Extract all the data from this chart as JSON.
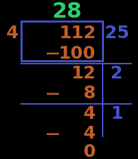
{
  "title": "28",
  "title_color": "#2ecc71",
  "divisor": "4",
  "divisor_color": "#c0602a",
  "bg_color": "#000000",
  "box_color": "#4455cc",
  "line_color": "#4455cc",
  "rows": [
    {
      "left": "112",
      "right": "25",
      "left_color": "#c0602a",
      "right_color": "#4455cc",
      "has_minus": false,
      "minus_left": false
    },
    {
      "left": "100",
      "right": "",
      "left_color": "#c0602a",
      "right_color": "#4455cc",
      "has_minus": true,
      "minus_left": true
    },
    {
      "left": "12",
      "right": "2",
      "left_color": "#c0602a",
      "right_color": "#4455cc",
      "has_minus": false,
      "minus_left": false
    },
    {
      "left": "8",
      "right": "",
      "left_color": "#c0602a",
      "right_color": "#4455cc",
      "has_minus": true,
      "minus_left": true
    },
    {
      "left": "4",
      "right": "1",
      "left_color": "#c0602a",
      "right_color": "#4455cc",
      "has_minus": false,
      "minus_left": false
    },
    {
      "left": "4",
      "right": "",
      "left_color": "#c0602a",
      "right_color": "#4455cc",
      "has_minus": true,
      "minus_left": true
    }
  ],
  "remainder": "0",
  "remainder_color": "#c0602a"
}
